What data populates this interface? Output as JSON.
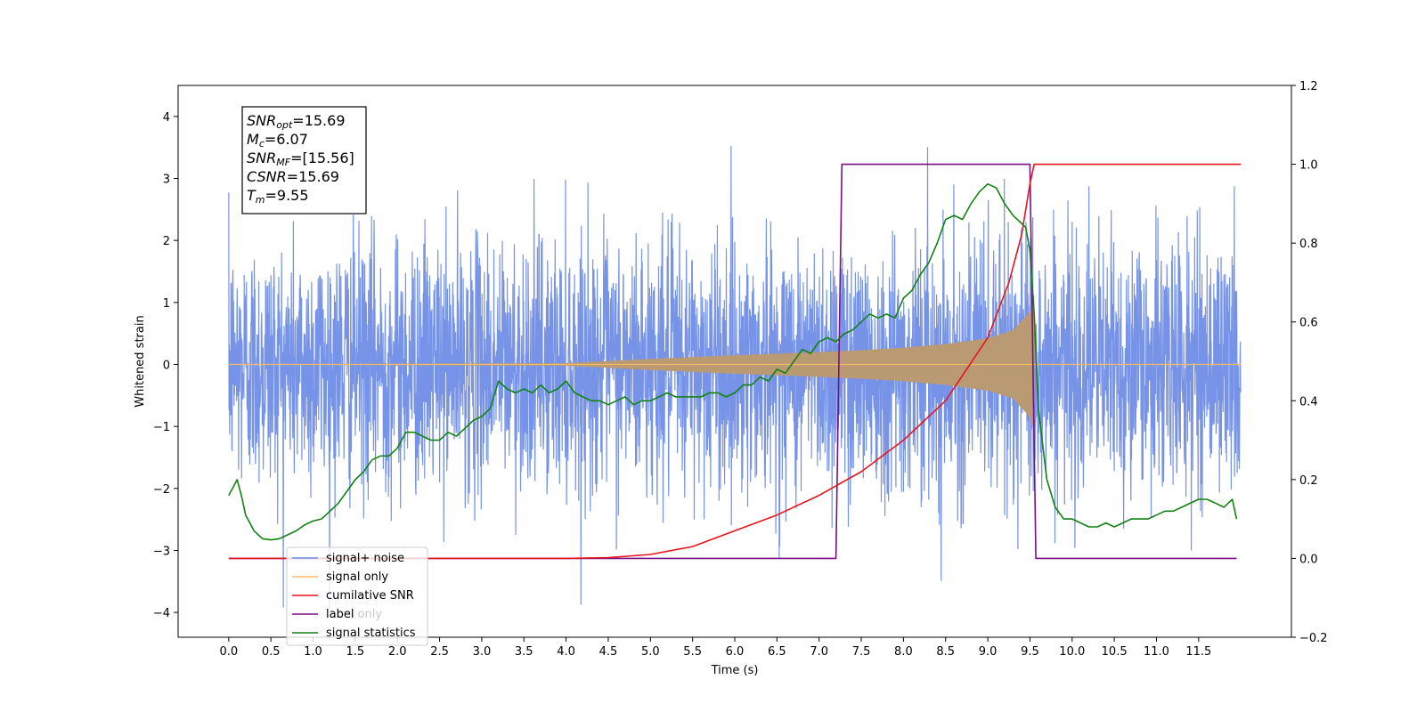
{
  "chart_data": {
    "type": "line",
    "xlabel": "Time (s)",
    "ylabel": "Whitened strain",
    "xlim": [
      -0.6,
      12.6
    ],
    "ylim": [
      -4.4,
      4.5
    ],
    "y2lim": [
      -0.2,
      1.2
    ],
    "x_ticks": [
      "0.0",
      "0.5",
      "1.0",
      "1.5",
      "2.0",
      "2.5",
      "3.0",
      "3.5",
      "4.0",
      "4.5",
      "5.0",
      "5.5",
      "6.0",
      "6.5",
      "7.0",
      "7.5",
      "8.0",
      "8.5",
      "9.0",
      "9.5",
      "10.0",
      "10.5",
      "11.0",
      "11.5"
    ],
    "y_ticks": [
      "−4",
      "−3",
      "−2",
      "−1",
      "0",
      "1",
      "2",
      "3",
      "4"
    ],
    "y2_ticks": [
      "−0.2",
      "0.0",
      "0.2",
      "0.4",
      "0.6",
      "0.8",
      "1.0",
      "1.2"
    ],
    "annotation": {
      "lines": [
        {
          "sym": "SNR",
          "sub": "opt",
          "value": "=15.69"
        },
        {
          "sym": "M",
          "sub": "c",
          "value": "=6.07"
        },
        {
          "sym": "SNR",
          "sub": "MF",
          "value": "=[15.56]"
        },
        {
          "sym": "CSNR",
          "sub": "",
          "value": "=15.69"
        },
        {
          "sym": "T",
          "sub": "m",
          "value": "=9.55"
        }
      ]
    },
    "legend": {
      "placement": "lower-left",
      "entries": [
        "signal+ noise",
        "signal only",
        "cumilative SNR",
        "label",
        "signal statistics"
      ],
      "hidden_text": "label only"
    },
    "series": [
      {
        "name": "signal+ noise",
        "axis": "left",
        "color": "#6f8de6",
        "kind": "noise",
        "t_start": 0.0,
        "t_end": 12.0,
        "std": 1.0,
        "max": 4.12,
        "min": -3.92
      },
      {
        "name": "signal only",
        "axis": "left",
        "color": "#f5b865",
        "kind": "chirp",
        "t_start": 0.0,
        "t_end": 12.0,
        "merger": 9.55,
        "envelope": {
          "t": [
            0.0,
            4.0,
            5.0,
            6.0,
            7.0,
            7.5,
            8.0,
            8.5,
            9.0,
            9.3,
            9.5,
            9.55
          ],
          "amp": [
            0.0,
            0.02,
            0.09,
            0.15,
            0.2,
            0.23,
            0.27,
            0.33,
            0.42,
            0.55,
            0.85,
            1.1
          ]
        }
      },
      {
        "name": "cumilative SNR",
        "axis": "right",
        "color": "#e8141b",
        "x": [
          0.0,
          4.0,
          4.5,
          5.0,
          5.5,
          6.0,
          6.5,
          7.0,
          7.5,
          8.0,
          8.5,
          9.0,
          9.25,
          9.4,
          9.5,
          9.55,
          12.0
        ],
        "y": [
          0.0,
          0.0,
          0.002,
          0.01,
          0.03,
          0.07,
          0.11,
          0.16,
          0.22,
          0.3,
          0.4,
          0.56,
          0.7,
          0.82,
          0.95,
          1.0,
          1.0
        ]
      },
      {
        "name": "label",
        "axis": "right",
        "color": "#7a0f82",
        "x": [
          0.0,
          7.2,
          7.27,
          9.5,
          9.57,
          11.95
        ],
        "y": [
          0.0,
          0.0,
          1.0,
          1.0,
          0.0,
          0.0
        ]
      },
      {
        "name": "signal statistics",
        "axis": "right",
        "color": "#128212",
        "x": [
          0.0,
          0.05,
          0.1,
          0.15,
          0.2,
          0.3,
          0.4,
          0.5,
          0.6,
          0.7,
          0.8,
          0.9,
          1.0,
          1.1,
          1.2,
          1.3,
          1.4,
          1.5,
          1.6,
          1.7,
          1.8,
          1.9,
          2.0,
          2.1,
          2.2,
          2.3,
          2.4,
          2.5,
          2.6,
          2.7,
          2.8,
          2.9,
          3.0,
          3.1,
          3.2,
          3.3,
          3.4,
          3.5,
          3.6,
          3.7,
          3.8,
          3.9,
          4.0,
          4.1,
          4.2,
          4.3,
          4.4,
          4.5,
          4.6,
          4.7,
          4.8,
          4.9,
          5.0,
          5.1,
          5.2,
          5.3,
          5.4,
          5.5,
          5.6,
          5.7,
          5.8,
          5.9,
          6.0,
          6.1,
          6.2,
          6.3,
          6.4,
          6.5,
          6.6,
          6.7,
          6.8,
          6.9,
          7.0,
          7.1,
          7.2,
          7.3,
          7.4,
          7.5,
          7.6,
          7.7,
          7.8,
          7.9,
          8.0,
          8.1,
          8.2,
          8.3,
          8.4,
          8.5,
          8.6,
          8.7,
          8.8,
          8.9,
          9.0,
          9.1,
          9.2,
          9.3,
          9.4,
          9.45,
          9.5,
          9.55,
          9.6,
          9.7,
          9.8,
          9.9,
          10.0,
          10.1,
          10.2,
          10.3,
          10.4,
          10.5,
          10.6,
          10.7,
          10.8,
          10.9,
          11.0,
          11.1,
          11.2,
          11.3,
          11.4,
          11.5,
          11.6,
          11.7,
          11.8,
          11.9,
          11.95
        ],
        "y": [
          0.16,
          0.18,
          0.2,
          0.16,
          0.11,
          0.07,
          0.05,
          0.047,
          0.05,
          0.06,
          0.07,
          0.085,
          0.095,
          0.1,
          0.12,
          0.14,
          0.17,
          0.2,
          0.22,
          0.25,
          0.26,
          0.26,
          0.28,
          0.32,
          0.32,
          0.31,
          0.3,
          0.3,
          0.32,
          0.31,
          0.33,
          0.35,
          0.36,
          0.38,
          0.45,
          0.43,
          0.42,
          0.43,
          0.42,
          0.44,
          0.42,
          0.43,
          0.45,
          0.42,
          0.41,
          0.4,
          0.4,
          0.39,
          0.4,
          0.41,
          0.39,
          0.4,
          0.4,
          0.41,
          0.42,
          0.41,
          0.41,
          0.41,
          0.41,
          0.42,
          0.42,
          0.41,
          0.42,
          0.44,
          0.44,
          0.46,
          0.45,
          0.48,
          0.47,
          0.5,
          0.53,
          0.52,
          0.55,
          0.56,
          0.55,
          0.57,
          0.58,
          0.6,
          0.62,
          0.61,
          0.62,
          0.61,
          0.66,
          0.68,
          0.72,
          0.75,
          0.8,
          0.86,
          0.87,
          0.86,
          0.9,
          0.93,
          0.95,
          0.94,
          0.9,
          0.87,
          0.85,
          0.84,
          0.78,
          0.62,
          0.38,
          0.2,
          0.13,
          0.1,
          0.1,
          0.09,
          0.08,
          0.08,
          0.09,
          0.08,
          0.09,
          0.1,
          0.1,
          0.1,
          0.11,
          0.12,
          0.12,
          0.13,
          0.14,
          0.15,
          0.15,
          0.14,
          0.13,
          0.15,
          0.1
        ]
      }
    ],
    "grid": false
  }
}
